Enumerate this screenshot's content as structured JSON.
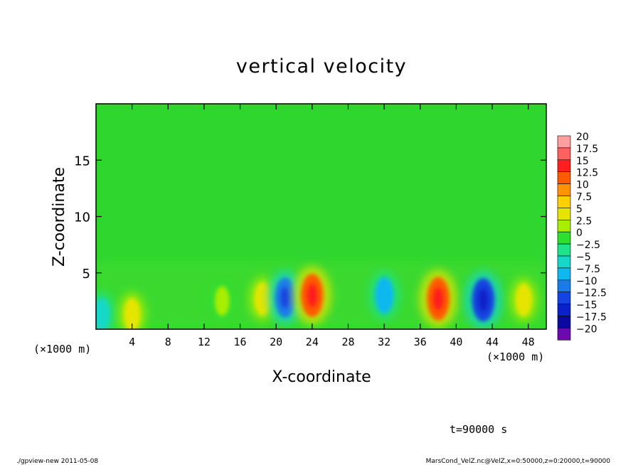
{
  "chart_data": {
    "type": "heatmap",
    "title": "vertical velocity",
    "xlabel": "X-coordinate",
    "ylabel": "Z-coordinate",
    "x_unit": "(×1000 m)",
    "x_unit_right": "(×1000 m)",
    "xlim": [
      0,
      50
    ],
    "ylim": [
      0,
      20
    ],
    "x_ticks": [
      4,
      8,
      12,
      16,
      20,
      24,
      28,
      32,
      36,
      40,
      44,
      48
    ],
    "y_ticks": [
      5,
      10,
      15
    ],
    "colorbar": {
      "levels": [
        "20",
        "17.5",
        "15",
        "12.5",
        "10",
        "7.5",
        "5",
        "2.5",
        "0",
        "−2.5",
        "−5",
        "−7.5",
        "−10",
        "−12.5",
        "−15",
        "−17.5",
        "−20"
      ],
      "colors": [
        "#ff9f9f",
        "#ff6060",
        "#ff1f1f",
        "#ff5a00",
        "#ff9400",
        "#ffd000",
        "#e5e500",
        "#a8ee00",
        "#2ee02e",
        "#1fe28a",
        "#16d8c8",
        "#10b8ee",
        "#1a7ce8",
        "#1444e0",
        "#0b20c8",
        "#0a0aa0",
        "#6a0ab0"
      ]
    },
    "features": [
      {
        "x": 0.6,
        "z": 1.3,
        "value": -5,
        "note": "weak downdraft at left edge"
      },
      {
        "x": 4.0,
        "z": 1.3,
        "value": 5
      },
      {
        "x": 14.0,
        "z": 2.5,
        "value": 2.5
      },
      {
        "x": 18.5,
        "z": 2.7,
        "value": 5
      },
      {
        "x": 21.0,
        "z": 2.8,
        "value": -10
      },
      {
        "x": 24.0,
        "z": 3.0,
        "value": 12.5
      },
      {
        "x": 32.0,
        "z": 3.0,
        "value": -7.5
      },
      {
        "x": 38.0,
        "z": 2.7,
        "value": 12.5
      },
      {
        "x": 43.0,
        "z": 2.6,
        "value": -12.5
      },
      {
        "x": 47.5,
        "z": 2.6,
        "value": 5
      }
    ],
    "time_label": "t=90000 s"
  },
  "footer": {
    "left": "./gpview-new   2011-05-08",
    "right": "MarsCond_VelZ.nc@VelZ,x=0:50000,z=0:20000,t=90000"
  }
}
